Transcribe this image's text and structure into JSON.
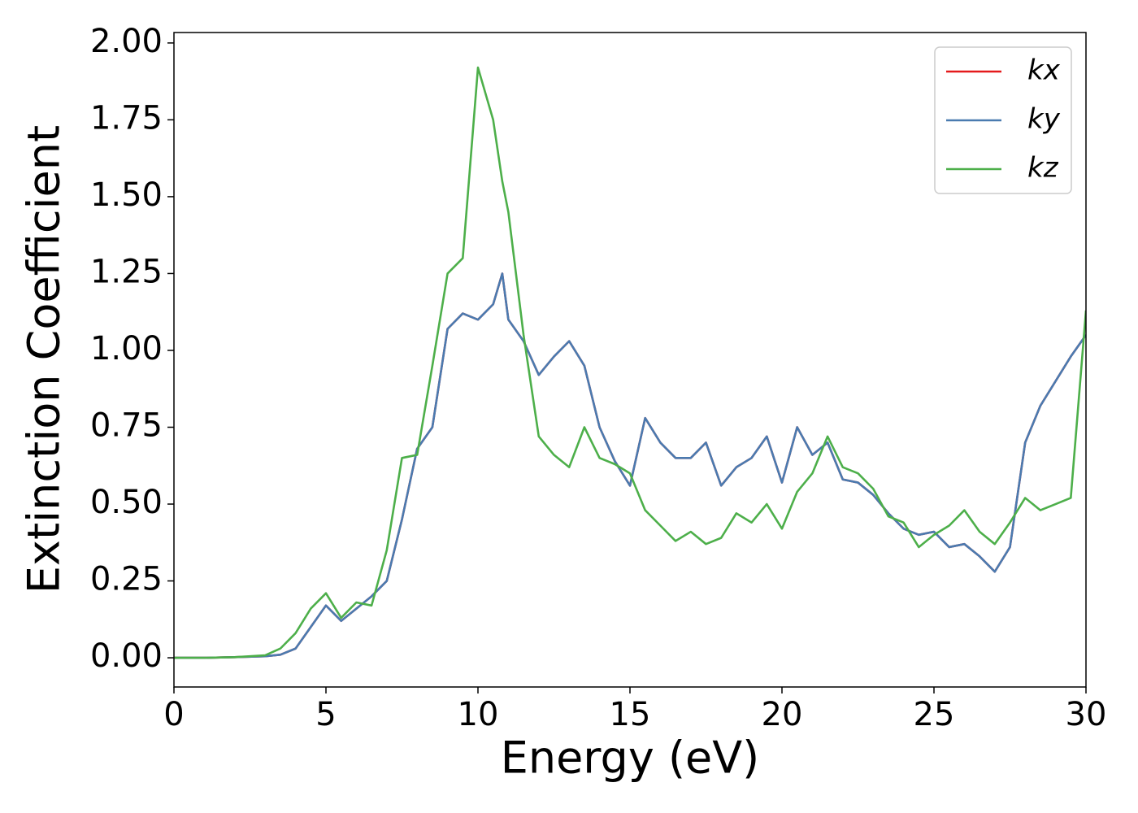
{
  "chart_data": {
    "type": "line",
    "xlabel": "Energy (eV)",
    "ylabel": "Extinction Coefficient",
    "x": [
      0,
      1,
      2,
      3,
      3.5,
      4,
      4.5,
      5,
      5.5,
      6,
      6.5,
      7,
      7.5,
      8,
      8.5,
      9,
      9.5,
      10,
      10.5,
      10.8,
      11,
      11.5,
      12,
      12.5,
      13,
      13.5,
      14,
      14.5,
      15,
      15.5,
      16,
      16.5,
      17,
      17.5,
      18,
      18.5,
      19,
      19.5,
      20,
      20.5,
      21,
      21.5,
      22,
      22.5,
      23,
      23.5,
      24,
      24.5,
      25,
      25.5,
      26,
      26.5,
      27,
      27.5,
      28,
      28.5,
      29,
      29.5,
      30
    ],
    "series": [
      {
        "name": "kx",
        "color": "#e41a1c",
        "values": [
          0,
          0,
          0.002,
          0.005,
          0.01,
          0.03,
          0.1,
          0.17,
          0.12,
          0.16,
          0.2,
          0.25,
          0.45,
          0.68,
          0.75,
          1.07,
          1.12,
          1.1,
          1.15,
          1.25,
          1.1,
          1.03,
          0.92,
          0.98,
          1.03,
          0.95,
          0.75,
          0.64,
          0.56,
          0.78,
          0.7,
          0.65,
          0.65,
          0.7,
          0.56,
          0.62,
          0.65,
          0.72,
          0.57,
          0.75,
          0.66,
          0.7,
          0.58,
          0.57,
          0.53,
          0.47,
          0.42,
          0.4,
          0.41,
          0.36,
          0.37,
          0.33,
          0.28,
          0.36,
          0.7,
          0.82,
          0.9,
          0.98,
          1.05
        ]
      },
      {
        "name": "ky",
        "color": "#4a7bb0",
        "values": [
          0,
          0,
          0.002,
          0.005,
          0.01,
          0.03,
          0.1,
          0.17,
          0.12,
          0.16,
          0.2,
          0.25,
          0.45,
          0.68,
          0.75,
          1.07,
          1.12,
          1.1,
          1.15,
          1.25,
          1.1,
          1.03,
          0.92,
          0.98,
          1.03,
          0.95,
          0.75,
          0.64,
          0.56,
          0.78,
          0.7,
          0.65,
          0.65,
          0.7,
          0.56,
          0.62,
          0.65,
          0.72,
          0.57,
          0.75,
          0.66,
          0.7,
          0.58,
          0.57,
          0.53,
          0.47,
          0.42,
          0.4,
          0.41,
          0.36,
          0.37,
          0.33,
          0.28,
          0.36,
          0.7,
          0.82,
          0.9,
          0.98,
          1.05
        ]
      },
      {
        "name": "kz",
        "color": "#4daf4a",
        "values": [
          0,
          0,
          0.002,
          0.008,
          0.03,
          0.08,
          0.16,
          0.21,
          0.13,
          0.18,
          0.17,
          0.35,
          0.65,
          0.66,
          0.95,
          1.25,
          1.3,
          1.92,
          1.75,
          1.55,
          1.45,
          1.05,
          0.72,
          0.66,
          0.62,
          0.75,
          0.65,
          0.63,
          0.6,
          0.48,
          0.43,
          0.38,
          0.41,
          0.37,
          0.39,
          0.47,
          0.44,
          0.5,
          0.42,
          0.54,
          0.6,
          0.72,
          0.62,
          0.6,
          0.55,
          0.46,
          0.44,
          0.36,
          0.4,
          0.43,
          0.48,
          0.41,
          0.37,
          0.44,
          0.52,
          0.48,
          0.5,
          0.52,
          1.13
        ]
      }
    ],
    "xlim": [
      0,
      30
    ],
    "xticks": [
      0,
      5,
      10,
      15,
      20,
      25,
      30
    ],
    "ylim": [
      -0.095,
      2.034
    ],
    "yticks": [
      {
        "value": 0,
        "label": "0.00"
      },
      {
        "value": 0.25,
        "label": "0.25"
      },
      {
        "value": 0.5,
        "label": "0.50"
      },
      {
        "value": 0.75,
        "label": "0.75"
      },
      {
        "value": 1,
        "label": "1.00"
      },
      {
        "value": 1.25,
        "label": "1.25"
      },
      {
        "value": 1.5,
        "label": "1.50"
      },
      {
        "value": 1.75,
        "label": "1.75"
      },
      {
        "value": 2,
        "label": "2.00"
      }
    ],
    "grid": false,
    "legend": "upper right"
  }
}
